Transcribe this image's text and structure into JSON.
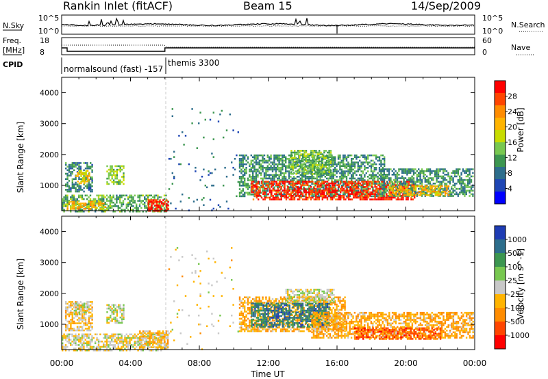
{
  "header": {
    "title": "Rankin Inlet (fitACF)",
    "beam": "Beam 15",
    "date": "14/Sep/2009"
  },
  "strip": {
    "nsky_label": "N.Sky",
    "nsearch_label": "N.Search",
    "noise_ticks": [
      "10^5",
      "10^0"
    ],
    "freq_label_1": "Freq.",
    "freq_label_2": "[MHz]",
    "freq_ticks": [
      "18",
      "8"
    ],
    "nave_label": "Nave",
    "nave_ticks": [
      "60",
      "0"
    ],
    "cpid_label": "CPID",
    "cpid_1": "normalsound (fast) -157",
    "cpid_2": "themis 3300"
  },
  "axes": {
    "x_ticks": [
      "00:00",
      "04:00",
      "08:00",
      "12:00",
      "16:00",
      "20:00",
      "00:00"
    ],
    "x_label": "Time UT",
    "y_ticks": [
      "4000",
      "3000",
      "2000",
      "1000"
    ],
    "y_label": "Slant Range [km]"
  },
  "colorbars": {
    "power_label": "Power [dB]",
    "power_ticks": [
      "28",
      "24",
      "20",
      "16",
      "12",
      "8",
      "4"
    ],
    "power_colors": [
      "#ff0000",
      "#ff4500",
      "#ff8c00",
      "#ffb400",
      "#c8dc00",
      "#78c850",
      "#3c9650",
      "#2d6e8c",
      "#1e46b4",
      "#0000ff"
    ],
    "velocity_label": "Velocity [m s^-1]",
    "velocity_ticks": [
      "1000",
      "500",
      "100",
      "25",
      "-25",
      "-100",
      "-500",
      "-1000"
    ],
    "velocity_colors": [
      "#1e3cb4",
      "#2d6e8c",
      "#3c9650",
      "#78c850",
      "#c8c8c8",
      "#ffb400",
      "#ff8c00",
      "#ff4500",
      "#ff0000"
    ]
  },
  "chart_data": [
    {
      "type": "heatmap",
      "xlabel": "Time UT",
      "ylabel": "Slant Range [km]",
      "xlim": [
        0,
        24
      ],
      "ylim": [
        180,
        4500
      ],
      "colorbar": "Power [dB]",
      "clim": [
        0,
        30
      ],
      "regions": [
        {
          "t0": 0.2,
          "t1": 1.8,
          "r0": 800,
          "r1": 1750,
          "value": 9
        },
        {
          "t0": 0.8,
          "t1": 1.6,
          "r0": 1050,
          "r1": 1500,
          "value": 18
        },
        {
          "t0": 2.6,
          "t1": 3.6,
          "r0": 1050,
          "r1": 1650,
          "value": 14
        },
        {
          "t0": 0.0,
          "t1": 6.2,
          "r0": 180,
          "r1": 700,
          "value": 12
        },
        {
          "t0": 0.3,
          "t1": 2.5,
          "r0": 250,
          "r1": 500,
          "value": 20
        },
        {
          "t0": 5.0,
          "t1": 6.2,
          "r0": 200,
          "r1": 550,
          "value": 28
        },
        {
          "t0": 10.3,
          "t1": 18.8,
          "r0": 650,
          "r1": 2000,
          "value": 10
        },
        {
          "t0": 11.0,
          "t1": 20.5,
          "r0": 550,
          "r1": 1150,
          "value": 27
        },
        {
          "t0": 13.3,
          "t1": 15.6,
          "r0": 1350,
          "r1": 2150,
          "value": 13
        },
        {
          "t0": 18.5,
          "t1": 23.9,
          "r0": 650,
          "r1": 1550,
          "value": 10
        },
        {
          "t0": 19.0,
          "t1": 22.5,
          "r0": 700,
          "r1": 1000,
          "value": 20
        },
        {
          "t0": 6.2,
          "t1": 10.3,
          "r0": 200,
          "r1": 3500,
          "value": 8,
          "sparse": true
        }
      ]
    },
    {
      "type": "heatmap",
      "xlabel": "Time UT",
      "ylabel": "Slant Range [km]",
      "xlim": [
        0,
        24
      ],
      "ylim": [
        180,
        4500
      ],
      "colorbar": "Velocity [m s^-1]",
      "clim": [
        -1000,
        1000
      ],
      "regions": [
        {
          "t0": 0.2,
          "t1": 1.8,
          "r0": 800,
          "r1": 1750,
          "value": -150
        },
        {
          "t0": 0.7,
          "t1": 1.5,
          "r0": 1300,
          "r1": 1700,
          "value": 80
        },
        {
          "t0": 2.6,
          "t1": 3.6,
          "r0": 1050,
          "r1": 1650,
          "value": 60
        },
        {
          "t0": 0.0,
          "t1": 6.2,
          "r0": 180,
          "r1": 700,
          "value": -60
        },
        {
          "t0": 4.5,
          "t1": 6.2,
          "r0": 250,
          "r1": 800,
          "value": -200
        },
        {
          "t0": 10.3,
          "t1": 16.5,
          "r0": 800,
          "r1": 1900,
          "value": -300
        },
        {
          "t0": 11.0,
          "t1": 15.5,
          "r0": 900,
          "r1": 1700,
          "value": 600
        },
        {
          "t0": 13.0,
          "t1": 15.8,
          "r0": 1700,
          "r1": 2150,
          "value": 0
        },
        {
          "t0": 14.5,
          "t1": 23.9,
          "r0": 550,
          "r1": 1400,
          "value": -300
        },
        {
          "t0": 17.0,
          "t1": 22.0,
          "r0": 550,
          "r1": 900,
          "value": -600
        },
        {
          "t0": 6.2,
          "t1": 10.3,
          "r0": 200,
          "r1": 3500,
          "value": -100,
          "sparse": true
        }
      ]
    }
  ]
}
